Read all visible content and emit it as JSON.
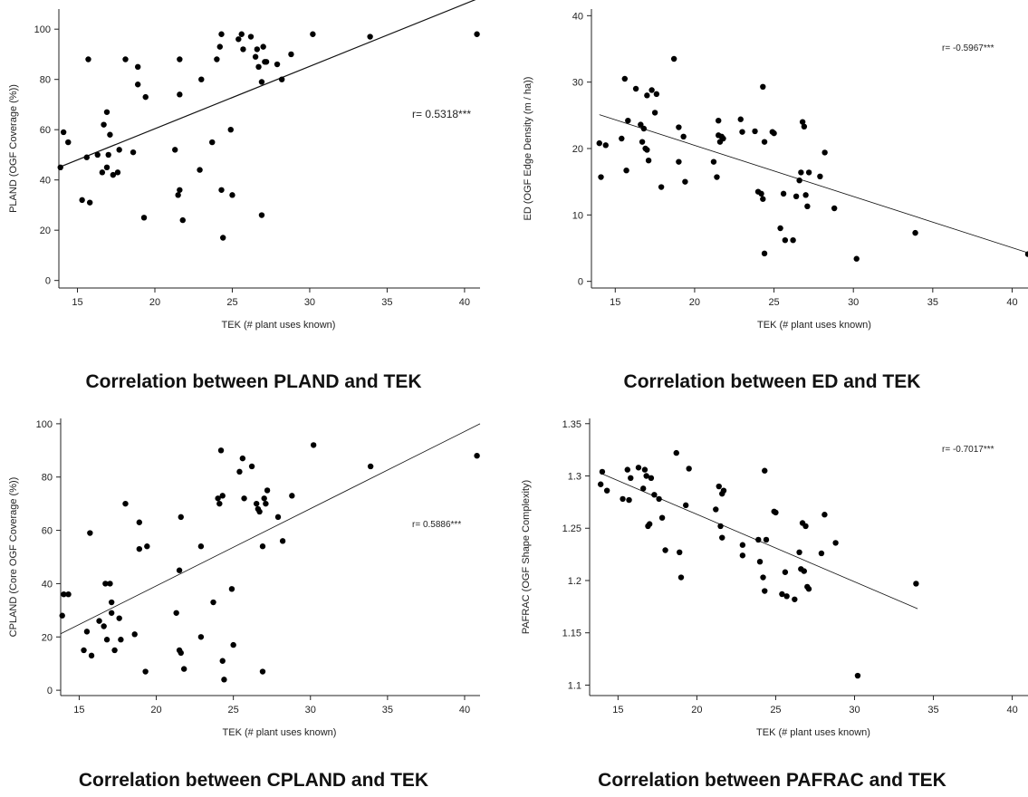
{
  "chart_data": [
    {
      "type": "scatter",
      "title": "Correlation between PLAND and TEK",
      "xlabel": "TEK (# plant uses known)",
      "ylabel": "PLAND (OGF Coverage (%))",
      "annotation": "r= 0.5318***",
      "xlim": [
        13.8,
        41
      ],
      "ylim": [
        -3,
        108
      ],
      "xticks": [
        15,
        20,
        25,
        30,
        35,
        40
      ],
      "yticks": [
        0,
        20,
        40,
        60,
        80,
        100
      ],
      "trendline": {
        "x": [
          13.8,
          40.8
        ],
        "y": [
          45,
          112
        ]
      },
      "points": [
        [
          13.9,
          45
        ],
        [
          14.1,
          59
        ],
        [
          14.4,
          55
        ],
        [
          15.3,
          32
        ],
        [
          15.6,
          49
        ],
        [
          15.7,
          88
        ],
        [
          15.8,
          31
        ],
        [
          16.3,
          50
        ],
        [
          16.6,
          43
        ],
        [
          16.7,
          62
        ],
        [
          16.9,
          45
        ],
        [
          16.9,
          67
        ],
        [
          17.0,
          50
        ],
        [
          17.1,
          58
        ],
        [
          17.3,
          42
        ],
        [
          17.6,
          43
        ],
        [
          17.7,
          52
        ],
        [
          18.1,
          88
        ],
        [
          18.6,
          51
        ],
        [
          18.9,
          78
        ],
        [
          18.9,
          85
        ],
        [
          19.3,
          25
        ],
        [
          19.4,
          73
        ],
        [
          21.3,
          52
        ],
        [
          21.5,
          34
        ],
        [
          21.6,
          36
        ],
        [
          21.6,
          74
        ],
        [
          21.6,
          88
        ],
        [
          21.8,
          24
        ],
        [
          22.9,
          44
        ],
        [
          23.0,
          80
        ],
        [
          23.7,
          55
        ],
        [
          24.0,
          88
        ],
        [
          24.2,
          93
        ],
        [
          24.3,
          98
        ],
        [
          24.3,
          36
        ],
        [
          24.4,
          17
        ],
        [
          24.9,
          60
        ],
        [
          25.0,
          34
        ],
        [
          25.4,
          96
        ],
        [
          25.6,
          98
        ],
        [
          25.7,
          92
        ],
        [
          26.2,
          97
        ],
        [
          26.5,
          89
        ],
        [
          26.6,
          92
        ],
        [
          26.7,
          85
        ],
        [
          26.9,
          79
        ],
        [
          26.9,
          26
        ],
        [
          27.0,
          93
        ],
        [
          27.1,
          87
        ],
        [
          27.2,
          87
        ],
        [
          27.9,
          86
        ],
        [
          28.2,
          80
        ],
        [
          28.8,
          90
        ],
        [
          30.2,
          98
        ],
        [
          33.9,
          97
        ],
        [
          40.8,
          98
        ]
      ]
    },
    {
      "type": "scatter",
      "title": "Correlation between ED and TEK",
      "xlabel": "TEK (# plant uses known)",
      "ylabel": "ED (OGF Edge Density (m / ha))",
      "annotation": "r= -0.5967***",
      "xlim": [
        13.5,
        41
      ],
      "ylim": [
        -1,
        41
      ],
      "xticks": [
        15,
        20,
        25,
        30,
        35,
        40
      ],
      "yticks": [
        0,
        10,
        20,
        30,
        40
      ],
      "trendline": {
        "x": [
          14.0,
          41.0
        ],
        "y": [
          25.1,
          4.3
        ]
      },
      "points": [
        [
          14.0,
          20.8
        ],
        [
          14.1,
          15.7
        ],
        [
          14.4,
          20.5
        ],
        [
          15.4,
          21.5
        ],
        [
          15.6,
          30.5
        ],
        [
          15.7,
          16.7
        ],
        [
          15.8,
          24.2
        ],
        [
          16.3,
          29.0
        ],
        [
          16.6,
          23.6
        ],
        [
          16.7,
          21.0
        ],
        [
          16.8,
          23.0
        ],
        [
          16.9,
          20.0
        ],
        [
          17.0,
          28.0
        ],
        [
          17.0,
          19.8
        ],
        [
          17.1,
          18.2
        ],
        [
          17.3,
          28.8
        ],
        [
          17.5,
          25.4
        ],
        [
          17.6,
          28.2
        ],
        [
          17.9,
          14.2
        ],
        [
          18.7,
          33.5
        ],
        [
          19.0,
          23.2
        ],
        [
          19.0,
          18.0
        ],
        [
          19.3,
          21.8
        ],
        [
          19.4,
          15.0
        ],
        [
          21.2,
          18.0
        ],
        [
          21.4,
          15.7
        ],
        [
          21.5,
          24.2
        ],
        [
          21.5,
          22.0
        ],
        [
          21.6,
          21.0
        ],
        [
          21.7,
          21.8
        ],
        [
          21.8,
          21.5
        ],
        [
          22.9,
          24.4
        ],
        [
          23.0,
          22.5
        ],
        [
          23.8,
          22.6
        ],
        [
          24.0,
          13.5
        ],
        [
          24.2,
          13.2
        ],
        [
          24.3,
          12.4
        ],
        [
          24.3,
          29.3
        ],
        [
          24.4,
          4.2
        ],
        [
          24.4,
          21.0
        ],
        [
          24.9,
          22.5
        ],
        [
          25.0,
          22.3
        ],
        [
          25.4,
          8.0
        ],
        [
          25.6,
          13.2
        ],
        [
          25.7,
          6.2
        ],
        [
          26.2,
          6.2
        ],
        [
          26.4,
          12.8
        ],
        [
          26.6,
          15.2
        ],
        [
          26.7,
          16.4
        ],
        [
          26.8,
          24.0
        ],
        [
          26.9,
          23.3
        ],
        [
          27.0,
          13.0
        ],
        [
          27.1,
          11.3
        ],
        [
          27.2,
          16.4
        ],
        [
          27.9,
          15.8
        ],
        [
          28.2,
          19.4
        ],
        [
          28.8,
          11.0
        ],
        [
          30.2,
          3.4
        ],
        [
          33.9,
          7.3
        ],
        [
          41.0,
          4.1
        ]
      ]
    },
    {
      "type": "scatter",
      "title": "Correlation between CPLAND and TEK",
      "xlabel": "TEK (# plant uses known)",
      "ylabel": "CPLAND (Core OGF Coverage (%))",
      "annotation": "r= 0.5886***",
      "xlim": [
        13.8,
        41
      ],
      "ylim": [
        -2,
        102
      ],
      "xticks": [
        15,
        20,
        25,
        30,
        35,
        40
      ],
      "yticks": [
        0,
        20,
        40,
        60,
        80,
        100
      ],
      "trendline": {
        "x": [
          13.8,
          41.0
        ],
        "y": [
          21.2,
          100.0
        ]
      },
      "points": [
        [
          13.9,
          28
        ],
        [
          14.0,
          36
        ],
        [
          14.3,
          36
        ],
        [
          15.3,
          15
        ],
        [
          15.5,
          22
        ],
        [
          15.7,
          59
        ],
        [
          15.8,
          13
        ],
        [
          16.3,
          26
        ],
        [
          16.6,
          24
        ],
        [
          16.7,
          40
        ],
        [
          16.8,
          19
        ],
        [
          17.0,
          40
        ],
        [
          17.1,
          33
        ],
        [
          17.1,
          29
        ],
        [
          17.3,
          15
        ],
        [
          17.6,
          27
        ],
        [
          17.7,
          19
        ],
        [
          18.0,
          70
        ],
        [
          18.6,
          21
        ],
        [
          18.9,
          53
        ],
        [
          18.9,
          63
        ],
        [
          19.3,
          7
        ],
        [
          19.4,
          54
        ],
        [
          21.3,
          29
        ],
        [
          21.5,
          45
        ],
        [
          21.5,
          15
        ],
        [
          21.6,
          14
        ],
        [
          21.6,
          65
        ],
        [
          21.8,
          8
        ],
        [
          22.9,
          54
        ],
        [
          22.9,
          20
        ],
        [
          23.7,
          33
        ],
        [
          24.0,
          72
        ],
        [
          24.1,
          70
        ],
        [
          24.2,
          90
        ],
        [
          24.3,
          73
        ],
        [
          24.3,
          11
        ],
        [
          24.4,
          4
        ],
        [
          24.9,
          38
        ],
        [
          25.0,
          17
        ],
        [
          25.4,
          82
        ],
        [
          25.6,
          87
        ],
        [
          25.7,
          72
        ],
        [
          26.2,
          84
        ],
        [
          26.5,
          70
        ],
        [
          26.6,
          68
        ],
        [
          26.7,
          67
        ],
        [
          26.9,
          7
        ],
        [
          26.9,
          54
        ],
        [
          27.0,
          72
        ],
        [
          27.1,
          70
        ],
        [
          27.2,
          75
        ],
        [
          27.9,
          65
        ],
        [
          28.2,
          56
        ],
        [
          28.8,
          73
        ],
        [
          30.2,
          92
        ],
        [
          33.9,
          84
        ],
        [
          40.8,
          88
        ]
      ]
    },
    {
      "type": "scatter",
      "title": "Correlation between PAFRAC and TEK",
      "xlabel": "TEK (# plant uses known)",
      "ylabel": "PAFRAC (OGF Shape Complexity)",
      "annotation": "r= -0.7017***",
      "xlim": [
        13.2,
        41
      ],
      "ylim": [
        1.09,
        1.355
      ],
      "xticks": [
        15,
        20,
        25,
        30,
        35,
        40
      ],
      "yticks": [
        1.1,
        1.15,
        1.2,
        1.25,
        1.3,
        1.35
      ],
      "trendline": {
        "x": [
          14.0,
          34.0
        ],
        "y": [
          1.302,
          1.173
        ]
      },
      "points": [
        [
          13.9,
          1.292
        ],
        [
          14.0,
          1.304
        ],
        [
          14.3,
          1.286
        ],
        [
          15.3,
          1.278
        ],
        [
          15.6,
          1.306
        ],
        [
          15.7,
          1.277
        ],
        [
          15.8,
          1.298
        ],
        [
          16.3,
          1.308
        ],
        [
          16.6,
          1.288
        ],
        [
          16.7,
          1.306
        ],
        [
          16.8,
          1.3
        ],
        [
          16.9,
          1.252
        ],
        [
          17.0,
          1.254
        ],
        [
          17.1,
          1.298
        ],
        [
          17.3,
          1.282
        ],
        [
          17.6,
          1.278
        ],
        [
          17.8,
          1.26
        ],
        [
          18.0,
          1.229
        ],
        [
          18.7,
          1.322
        ],
        [
          18.9,
          1.227
        ],
        [
          19.0,
          1.203
        ],
        [
          19.3,
          1.272
        ],
        [
          19.5,
          1.307
        ],
        [
          21.2,
          1.268
        ],
        [
          21.4,
          1.29
        ],
        [
          21.5,
          1.252
        ],
        [
          21.6,
          1.241
        ],
        [
          21.6,
          1.283
        ],
        [
          21.7,
          1.286
        ],
        [
          22.9,
          1.234
        ],
        [
          22.9,
          1.224
        ],
        [
          23.9,
          1.239
        ],
        [
          24.0,
          1.218
        ],
        [
          24.2,
          1.203
        ],
        [
          24.3,
          1.19
        ],
        [
          24.3,
          1.305
        ],
        [
          24.4,
          1.239
        ],
        [
          24.9,
          1.266
        ],
        [
          25.0,
          1.265
        ],
        [
          25.4,
          1.187
        ],
        [
          25.6,
          1.208
        ],
        [
          25.7,
          1.185
        ],
        [
          26.2,
          1.182
        ],
        [
          26.5,
          1.227
        ],
        [
          26.6,
          1.211
        ],
        [
          26.7,
          1.255
        ],
        [
          26.8,
          1.209
        ],
        [
          26.9,
          1.252
        ],
        [
          27.0,
          1.194
        ],
        [
          27.1,
          1.192
        ],
        [
          27.9,
          1.226
        ],
        [
          28.1,
          1.263
        ],
        [
          28.8,
          1.236
        ],
        [
          30.2,
          1.109
        ],
        [
          33.9,
          1.197
        ]
      ]
    }
  ]
}
